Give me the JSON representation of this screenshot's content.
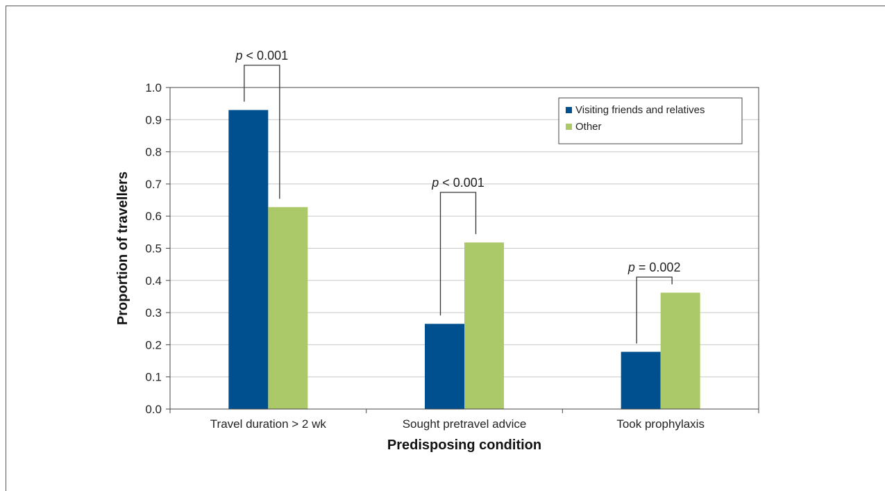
{
  "chart_data": {
    "type": "bar",
    "categories": [
      "Travel duration > 2 wk",
      "Sought pretravel advice",
      "Took prophylaxis"
    ],
    "series": [
      {
        "name": "Visiting friends and relatives",
        "values": [
          0.93,
          0.265,
          0.178
        ],
        "color": "#00508f"
      },
      {
        "name": "Other",
        "values": [
          0.628,
          0.518,
          0.362
        ],
        "color": "#acc96a"
      }
    ],
    "xlabel": "Predisposing condition",
    "ylabel": "Proportion of travellers",
    "ylim": [
      0,
      1.0
    ],
    "yticks": [
      "0.0",
      "0.1",
      "0.2",
      "0.3",
      "0.4",
      "0.5",
      "0.6",
      "0.7",
      "0.8",
      "0.9",
      "1.0"
    ],
    "grid": true,
    "legend_position": "top-right",
    "annotations": [
      {
        "category_index": 0,
        "p_symbol": "p",
        "text": " < 0.001"
      },
      {
        "category_index": 1,
        "p_symbol": "p",
        "text": " < 0.001"
      },
      {
        "category_index": 2,
        "p_symbol": "p",
        "text": " = 0.002"
      }
    ]
  }
}
